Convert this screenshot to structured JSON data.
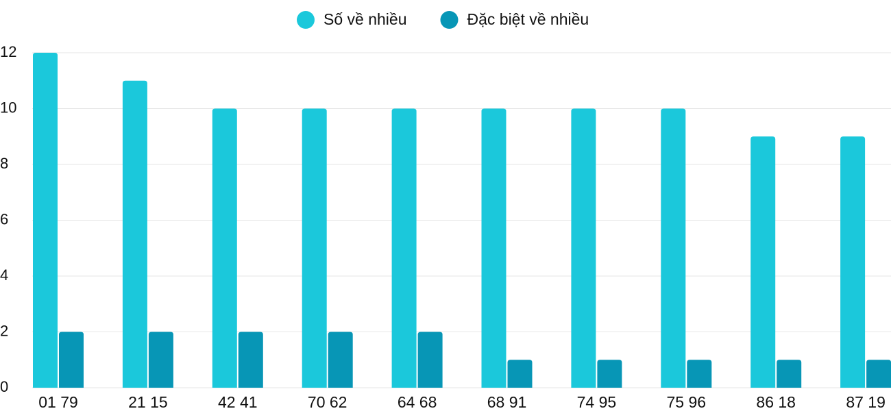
{
  "chart_data": {
    "type": "bar",
    "categories": [
      "01 79",
      "21 15",
      "42 41",
      "70 62",
      "64 68",
      "68 91",
      "74 95",
      "75 96",
      "86 18",
      "87 19"
    ],
    "series": [
      {
        "name": "Số về nhiều",
        "color": "#1bc8db",
        "values": [
          12,
          11,
          10,
          10,
          10,
          10,
          10,
          10,
          9,
          9
        ]
      },
      {
        "name": "Đặc biệt về nhiều",
        "color": "#0796b6",
        "values": [
          2,
          2,
          2,
          2,
          2,
          1,
          1,
          1,
          1,
          1
        ]
      }
    ],
    "ylim": [
      0,
      12
    ],
    "yticks": [
      0,
      2,
      4,
      6,
      8,
      10,
      12
    ],
    "grid": true,
    "legend": "top"
  }
}
